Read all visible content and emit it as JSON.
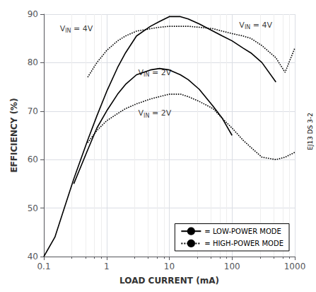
{
  "chart_data": {
    "type": "line",
    "title": "",
    "xlabel": "LOAD CURRENT (mA)",
    "ylabel": "EFFICIENCY (%)",
    "log": "x",
    "xlim": [
      0.1,
      1000
    ],
    "xticks": [
      0.1,
      1,
      10,
      100,
      1000
    ],
    "ylim": [
      40,
      90
    ],
    "yticks": [
      40,
      50,
      60,
      70,
      80,
      90
    ],
    "grid": true,
    "legend": "lower right",
    "watermark": "EJ13 DS 3-2",
    "series": [
      {
        "name": "= LOW-POWER MODE",
        "color": "#000000",
        "line_style": "solid",
        "x": [
          0.1,
          0.15,
          0.2,
          0.3,
          0.5,
          0.7,
          1.0,
          1.5,
          2.0,
          3.0,
          5.0,
          7.0,
          10.0,
          15.0,
          20.0,
          30.0,
          50.0,
          70.0,
          100.0,
          150.0,
          200.0,
          300.0,
          500.0
        ],
        "values": [
          40.0,
          44.0,
          49.0,
          56.0,
          64.0,
          69.0,
          74.0,
          79.0,
          82.0,
          85.5,
          87.5,
          88.5,
          89.5,
          89.5,
          89.0,
          88.0,
          86.5,
          85.5,
          84.5,
          83.0,
          82.0,
          80.0,
          76.0
        ]
      },
      {
        "name": "= HIGH-POWER MODE",
        "color": "#000000",
        "line_style": "dotted",
        "x": [
          0.5,
          0.7,
          1.0,
          1.5,
          2.0,
          3.0,
          5.0,
          7.0,
          10.0,
          15.0,
          20.0,
          30.0,
          50.0,
          70.0,
          100.0,
          150.0,
          200.0,
          300.0,
          500.0,
          700.0,
          1000.0
        ],
        "values": [
          77.0,
          80.0,
          82.5,
          84.5,
          85.5,
          86.5,
          87.0,
          87.3,
          87.5,
          87.5,
          87.5,
          87.3,
          87.0,
          86.5,
          86.0,
          85.5,
          85.0,
          83.5,
          81.0,
          78.0,
          83.0
        ]
      },
      {
        "name": "= LOW-POWER MODE",
        "color": "#000000",
        "line_style": "solid",
        "x": [
          0.3,
          0.5,
          0.7,
          1.0,
          1.5,
          2.0,
          3.0,
          5.0,
          7.0,
          10.0,
          15.0,
          20.0,
          30.0,
          50.0,
          70.0,
          100.0
        ],
        "values": [
          55.0,
          62.0,
          66.5,
          70.0,
          73.5,
          75.5,
          77.5,
          78.5,
          78.8,
          78.5,
          77.5,
          76.5,
          74.5,
          71.0,
          68.5,
          65.0
        ]
      },
      {
        "name": "= HIGH-POWER MODE",
        "color": "#000000",
        "line_style": "dotted",
        "x": [
          0.5,
          0.7,
          1.0,
          1.5,
          2.0,
          3.0,
          5.0,
          7.0,
          10.0,
          15.0,
          20.0,
          30.0,
          50.0,
          70.0,
          100.0,
          150.0,
          200.0,
          300.0,
          500.0,
          700.0,
          1000.0
        ],
        "values": [
          63.5,
          66.0,
          68.0,
          69.5,
          70.5,
          71.5,
          72.5,
          73.0,
          73.5,
          73.5,
          73.0,
          72.0,
          70.5,
          68.5,
          66.5,
          64.0,
          62.5,
          60.5,
          60.0,
          60.5,
          61.5
        ]
      }
    ],
    "annotations": [
      {
        "x": 0.18,
        "y": 86.2,
        "text": "V",
        "subscript": "IN",
        "suffix": " = 4V"
      },
      {
        "x": 130.0,
        "y": 87.0,
        "text": "V",
        "subscript": "IN",
        "suffix": " = 4V"
      },
      {
        "x": 3.2,
        "y": 77.2,
        "text": "V",
        "subscript": "IN",
        "suffix": " = 2V"
      },
      {
        "x": 3.2,
        "y": 68.8,
        "text": "V",
        "subscript": "IN",
        "suffix": " = 2V"
      }
    ]
  }
}
